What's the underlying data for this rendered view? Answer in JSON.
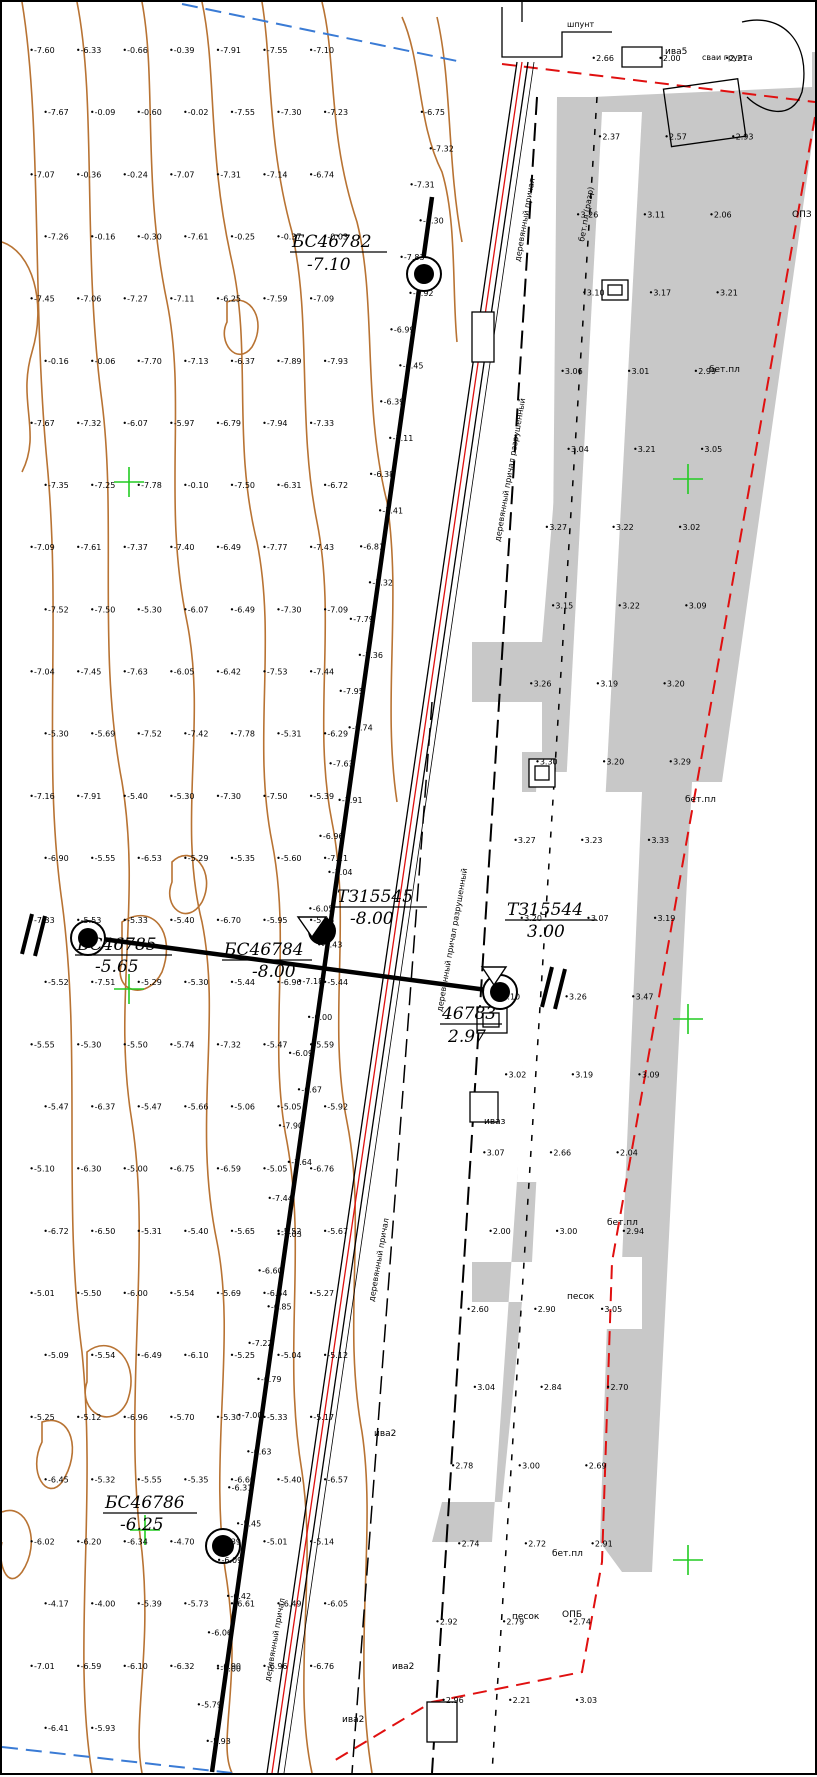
{
  "colors": {
    "contour": "#b87333",
    "concrete": "#c8c8c8",
    "red_line": "#e01010",
    "blue_line": "#3a7bd5",
    "green_cross": "#22cc22"
  },
  "wells": [
    {
      "name": "БС46782",
      "value": "-7.10"
    },
    {
      "name": "БС46785",
      "value": "-5.65"
    },
    {
      "name": "БС46784",
      "value": "-8.00"
    },
    {
      "name": "ТЗ15545",
      "value": "-8.00"
    },
    {
      "name": "ТЗ15544",
      "value": "3.00"
    },
    {
      "name": "46783",
      "value": "2.97"
    },
    {
      "name": "БС46786",
      "value": "-6.25"
    }
  ],
  "labels": {
    "beton_pl": "бет.пл",
    "pesok": "песок",
    "iva": "иваз",
    "iva2": "ива2",
    "iva5": "ива5",
    "derev": "деревянный причал",
    "derev_razr": "деревянный причал разрушенный",
    "svaya": "сваи грунта",
    "shpunt": "шпунт",
    "opb": "ОПБ",
    "opz": "ОПЗ",
    "beton_razr": "бет.пл (разр)"
  },
  "depths_left": [
    "-7.60",
    "-6.33",
    "-0.66",
    "-0.39",
    "-7.91",
    "-7.55",
    "-7.10",
    "-7.67",
    "-0.09",
    "-0.60",
    "-0.02",
    "-7.55",
    "-7.30",
    "-7.23",
    "-7.07",
    "-0.36",
    "-0.24",
    "-7.07",
    "-7.31",
    "-7.14",
    "-6.74",
    "-7.26",
    "-0.16",
    "-0.30",
    "-7.61",
    "-0.25",
    "-0.37",
    "-0.03",
    "-7.45",
    "-7.06",
    "-7.27",
    "-7.11",
    "-6.25",
    "-7.59",
    "-7.09",
    "-0.16",
    "-0.06",
    "-7.70",
    "-7.13",
    "-6.37",
    "-7.89",
    "-7.93",
    "-7.67",
    "-7.32",
    "-6.07",
    "-5.97",
    "-6.79",
    "-7.94",
    "-7.33",
    "-7.35",
    "-7.25",
    "-7.78",
    "-0.10",
    "-7.50",
    "-6.31",
    "-6.72",
    "-7.09",
    "-7.61",
    "-7.37",
    "-7.40",
    "-6.49",
    "-7.77",
    "-7.43",
    "-7.52",
    "-7.50",
    "-5.30",
    "-6.07",
    "-6.49",
    "-7.30",
    "-7.09",
    "-7.04",
    "-7.45",
    "-7.63",
    "-6.05",
    "-6.42",
    "-7.53",
    "-7.44",
    "-5.30",
    "-5.69",
    "-7.52",
    "-7.42",
    "-7.78",
    "-5.31",
    "-6.29",
    "-7.16",
    "-7.91",
    "-5.40",
    "-5.30",
    "-7.30",
    "-7.50",
    "-5.39",
    "-6.90",
    "-5.55",
    "-6.53",
    "-5.29",
    "-5.35",
    "-5.60",
    "-7.21",
    "-7.33",
    "-5.53",
    "-5.33",
    "-5.40",
    "-6.70",
    "-5.95",
    "-5.26",
    "-5.52",
    "-7.51",
    "-5.29",
    "-5.30",
    "-5.44",
    "-6.96",
    "-5.44",
    "-5.55",
    "-5.30",
    "-5.50",
    "-5.74",
    "-7.32",
    "-5.47",
    "-5.59",
    "-5.47",
    "-6.37",
    "-5.47",
    "-5.66",
    "-5.06",
    "-5.05",
    "-5.92",
    "-5.10",
    "-6.30",
    "-5.00",
    "-6.75",
    "-6.59",
    "-5.05",
    "-6.76",
    "-6.72",
    "-6.50",
    "-5.31",
    "-5.40",
    "-5.65",
    "-5.52",
    "-5.67",
    "-5.01",
    "-5.50",
    "-6.00",
    "-5.54",
    "-5.69",
    "-6.54",
    "-5.27",
    "-5.09",
    "-5.54",
    "-6.49",
    "-6.10",
    "-5.25",
    "-5.04",
    "-5.12",
    "-5.25",
    "-5.12",
    "-6.96",
    "-5.70",
    "-5.30",
    "-5.33",
    "-5.17",
    "-6.45",
    "-5.32",
    "-5.55",
    "-5.35",
    "-6.60",
    "-5.40",
    "-6.57",
    "-6.02",
    "-6.20",
    "-6.34",
    "-4.70",
    "-6.39",
    "-5.01",
    "-5.14",
    "-4.17",
    "-4.00",
    "-5.39",
    "-5.73",
    "-6.61",
    "-6.49",
    "-6.05",
    "-7.01",
    "-6.59",
    "-6.10",
    "-6.32",
    "-6.90",
    "-6.96",
    "-6.76",
    "-6.41",
    "-5.93"
  ],
  "depths_center": [
    "-6.75",
    "-7.32",
    "-7.31",
    "-6.30",
    "-7.83",
    "-6.92",
    "-6.99",
    "-6.45",
    "-6.39",
    "-7.11",
    "-6.38",
    "-7.41",
    "-6.81",
    "-7.32",
    "-7.79",
    "-7.36",
    "-7.95",
    "-6.74",
    "-7.63",
    "-7.91",
    "-6.96",
    "-7.04",
    "-6.05",
    "-7.43",
    "-7.18",
    "-0.00",
    "-6.09",
    "-6.67",
    "-7.90",
    "-7.64",
    "-7.44",
    "-7.03",
    "-6.60",
    "-6.85",
    "-7.22",
    "-6.79",
    "-7.00",
    "-6.63",
    "-6.31",
    "-5.45",
    "-6.09",
    "-6.42",
    "-6.06",
    "-6.00",
    "-5.79",
    "-5.93"
  ],
  "heights_right": [
    "2.66",
    "2.00",
    "2.21",
    "2.37",
    "2.57",
    "2.93",
    "3.26",
    "3.11",
    "2.06",
    "3.10",
    "3.17",
    "3.21",
    "3.06",
    "3.01",
    "2.99",
    "3.04",
    "3.21",
    "3.05",
    "3.27",
    "3.22",
    "3.02",
    "3.15",
    "3.22",
    "3.09",
    "3.26",
    "3.19",
    "3.20",
    "3.30",
    "3.20",
    "3.29",
    "3.27",
    "3.23",
    "3.33",
    "3.20",
    "3.07",
    "3.19",
    "3.10",
    "3.26",
    "3.47",
    "3.02",
    "3.19",
    "3.09",
    "3.07",
    "2.66",
    "2.04",
    "2.00",
    "3.00",
    "2.94",
    "2.60",
    "2.90",
    "3.05",
    "3.04",
    "2.84",
    "2.70",
    "2.78",
    "3.00",
    "2.69",
    "2.74",
    "2.72",
    "2.91",
    "2.92",
    "2.79",
    "2.74",
    "2.96",
    "2.21",
    "3.03"
  ]
}
